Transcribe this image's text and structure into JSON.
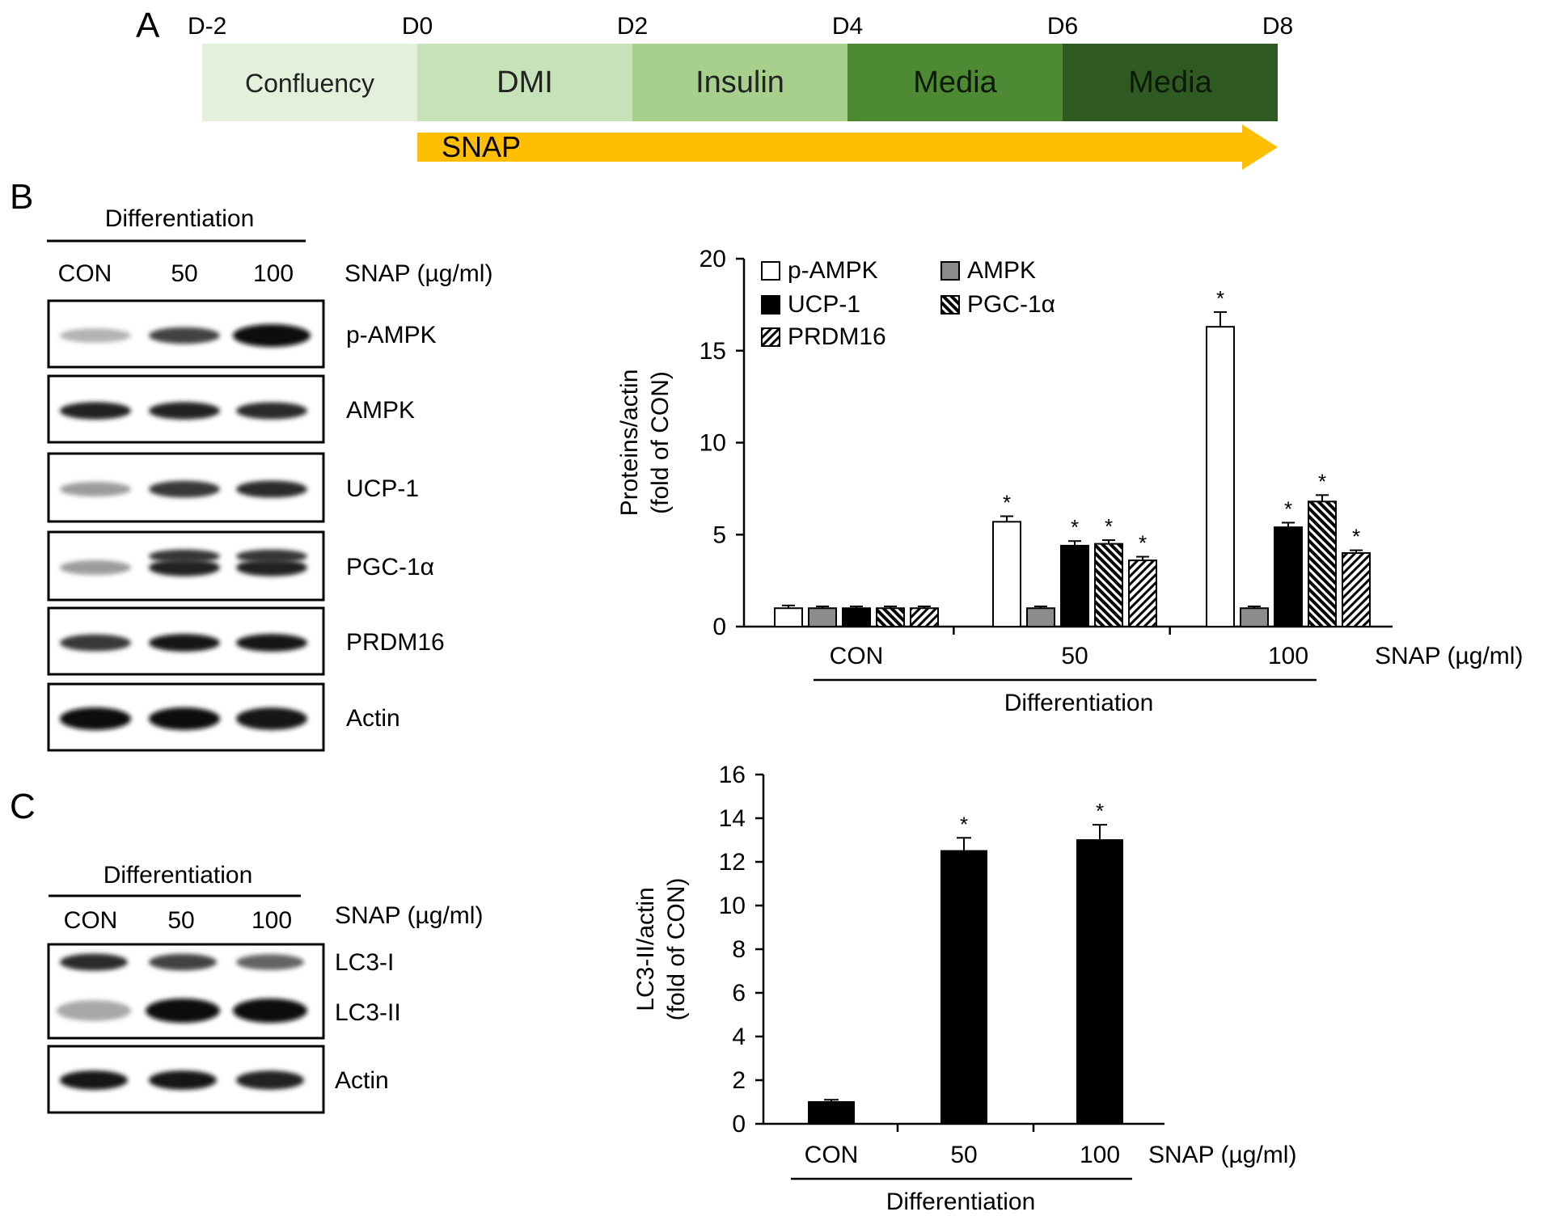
{
  "panels": {
    "a": "A",
    "b": "B",
    "c": "C"
  },
  "timeline": {
    "days": [
      "D-2",
      "D0",
      "D2",
      "D4",
      "D6",
      "D8"
    ],
    "stages": [
      {
        "label": "Confluency",
        "color": "#e3f1dc"
      },
      {
        "label": "DMI",
        "color": "#c6e2b8"
      },
      {
        "label": "Insulin",
        "color": "#a6d08c"
      },
      {
        "label": "Media",
        "color": "#4e8a33"
      },
      {
        "label": "Media",
        "color": "#2f5a22"
      }
    ],
    "arrow_label": "SNAP",
    "arrow_color": "#ffbf00"
  },
  "blot_b": {
    "header": "Differentiation",
    "lanes": [
      "CON",
      "50",
      "100"
    ],
    "treatment": "SNAP (µg/ml)",
    "rows": [
      "p-AMPK",
      "AMPK",
      "UCP-1",
      "PGC-1α",
      "PRDM16",
      "Actin"
    ],
    "intensity": [
      [
        0.25,
        0.75,
        1.0
      ],
      [
        0.9,
        0.9,
        0.85
      ],
      [
        0.35,
        0.8,
        0.85
      ],
      [
        0.35,
        0.9,
        0.9
      ],
      [
        0.8,
        0.95,
        0.95
      ],
      [
        1.0,
        1.0,
        0.95
      ]
    ]
  },
  "blot_c": {
    "header": "Differentiation",
    "lanes": [
      "CON",
      "50",
      "100"
    ],
    "treatment": "SNAP (µg/ml)",
    "rows": [
      "LC3-I",
      "LC3-II",
      "Actin"
    ],
    "lc3_i_intensity": [
      0.85,
      0.75,
      0.6
    ],
    "lc3_ii_intensity": [
      0.3,
      1.0,
      1.0
    ],
    "actin_intensity": [
      0.95,
      0.95,
      0.9
    ]
  },
  "chart_data": [
    {
      "type": "bar",
      "panel": "B",
      "categories": [
        "CON",
        "50",
        "100"
      ],
      "x_suffix": "SNAP (µg/ml)",
      "group_label": "Differentiation",
      "ylabel_lines": [
        "Proteins/actin",
        "(fold of CON)"
      ],
      "ylim": [
        0,
        20
      ],
      "yticks": [
        0,
        5,
        10,
        15,
        20
      ],
      "series": [
        {
          "name": "p-AMPK",
          "values": [
            1.0,
            5.7,
            16.3
          ],
          "errors": [
            0.15,
            0.3,
            0.8
          ],
          "sig": [
            false,
            true,
            true
          ],
          "fill": "white"
        },
        {
          "name": "AMPK",
          "values": [
            1.0,
            1.0,
            1.0
          ],
          "errors": [
            0.1,
            0.1,
            0.1
          ],
          "sig": [
            false,
            false,
            false
          ],
          "fill": "gray"
        },
        {
          "name": "UCP-1",
          "values": [
            1.0,
            4.4,
            5.4
          ],
          "errors": [
            0.1,
            0.25,
            0.25
          ],
          "sig": [
            false,
            true,
            true
          ],
          "fill": "black"
        },
        {
          "name": "PGC-1α",
          "values": [
            1.0,
            4.5,
            6.8
          ],
          "errors": [
            0.1,
            0.2,
            0.35
          ],
          "sig": [
            false,
            true,
            true
          ],
          "fill": "hatch-back"
        },
        {
          "name": "PRDM16",
          "values": [
            1.0,
            3.6,
            4.0
          ],
          "errors": [
            0.1,
            0.2,
            0.15
          ],
          "sig": [
            false,
            true,
            true
          ],
          "fill": "hatch-fwd"
        }
      ],
      "legend_order": [
        "p-AMPK",
        "AMPK",
        "UCP-1",
        "PGC-1α",
        "PRDM16"
      ],
      "sig_symbol": "*"
    },
    {
      "type": "bar",
      "panel": "C",
      "categories": [
        "CON",
        "50",
        "100"
      ],
      "x_suffix": "SNAP (µg/ml)",
      "group_label": "Differentiation",
      "ylabel_lines": [
        "LC3-II/actin",
        "(fold of CON)"
      ],
      "ylim": [
        0,
        16
      ],
      "yticks": [
        0,
        2,
        4,
        6,
        8,
        10,
        12,
        14,
        16
      ],
      "values": [
        1.0,
        12.5,
        13.0
      ],
      "errors": [
        0.1,
        0.6,
        0.7
      ],
      "sig": [
        false,
        true,
        true
      ],
      "sig_symbol": "*"
    }
  ]
}
